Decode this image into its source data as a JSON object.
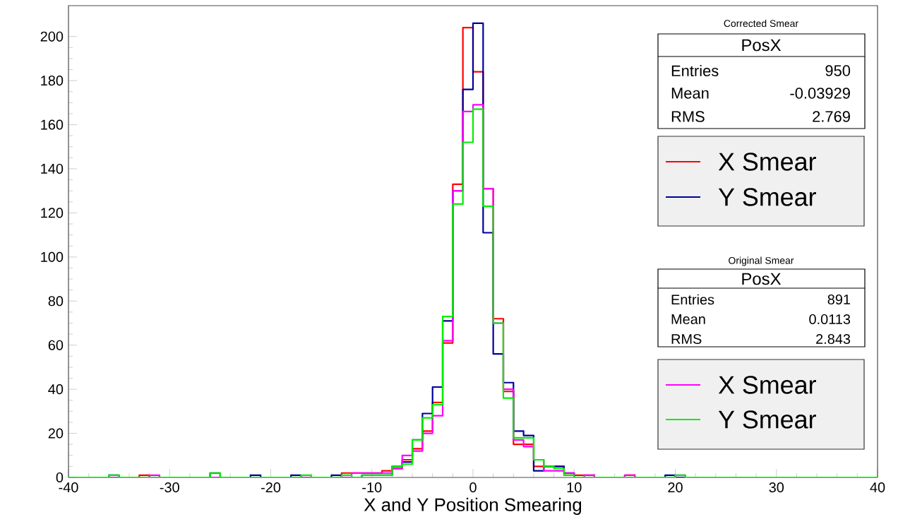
{
  "chart_data": {
    "type": "histogram",
    "xlabel": "X and Y Position Smearing",
    "bins": [
      -40,
      -39,
      -38,
      -37,
      -36,
      -35,
      -34,
      -33,
      -32,
      -31,
      -30,
      -29,
      -28,
      -27,
      -26,
      -25,
      -24,
      -23,
      -22,
      -21,
      -20,
      -19,
      -18,
      -17,
      -16,
      -15,
      -14,
      -13,
      -12,
      -11,
      -10,
      -9,
      -8,
      -7,
      -6,
      -5,
      -4,
      -3,
      -2,
      -1,
      0,
      1,
      2,
      3,
      4,
      5,
      6,
      7,
      8,
      9,
      10,
      11,
      12,
      13,
      14,
      15,
      16,
      17,
      18,
      19,
      20,
      21,
      22,
      23,
      24,
      25,
      26,
      27,
      28,
      29,
      30,
      31,
      32,
      33,
      34,
      35,
      36,
      37,
      38,
      39,
      40
    ],
    "series": [
      {
        "name": "X Smear",
        "color": "#ff0000",
        "values": [
          0,
          0,
          0,
          0,
          0,
          0,
          0,
          1,
          0,
          0,
          0,
          0,
          0,
          0,
          0,
          0,
          0,
          0,
          0,
          0,
          0,
          0,
          0,
          0,
          0,
          0,
          0,
          2,
          2,
          2,
          2,
          3,
          4,
          8,
          13,
          21,
          34,
          61,
          133,
          204,
          184,
          131,
          72,
          39,
          15,
          15,
          5,
          5,
          5,
          1,
          1,
          1,
          0,
          0,
          0,
          1,
          0,
          0,
          0,
          0,
          0,
          0,
          0,
          0,
          0,
          0,
          0,
          0,
          0,
          0,
          0,
          0,
          0,
          0,
          0,
          0,
          0,
          0,
          0,
          0
        ]
      },
      {
        "name": "Y Smear",
        "color": "#000099",
        "values": [
          0,
          0,
          0,
          0,
          1,
          0,
          0,
          0,
          0,
          0,
          0,
          0,
          0,
          0,
          2,
          0,
          0,
          0,
          1,
          0,
          0,
          0,
          1,
          0,
          0,
          0,
          1,
          0,
          0,
          1,
          1,
          1,
          5,
          7,
          17,
          29,
          41,
          71,
          130,
          176,
          206,
          111,
          56,
          43,
          21,
          19,
          3,
          5,
          5,
          2,
          0,
          0,
          0,
          0,
          0,
          0,
          0,
          0,
          0,
          1,
          0,
          0,
          0,
          0,
          0,
          0,
          0,
          0,
          0,
          0,
          0,
          0,
          0,
          0,
          0,
          0,
          0,
          0,
          0,
          0
        ]
      },
      {
        "name": "X Smear",
        "color": "#ff00ff",
        "values": [
          0,
          0,
          0,
          0,
          0,
          0,
          0,
          0,
          1,
          0,
          0,
          0,
          0,
          0,
          0,
          0,
          0,
          0,
          0,
          0,
          0,
          0,
          0,
          0,
          0,
          0,
          0,
          0,
          2,
          2,
          2,
          2,
          4,
          10,
          12,
          20,
          28,
          62,
          130,
          166,
          169,
          131,
          70,
          40,
          17,
          14,
          8,
          3,
          3,
          2,
          0,
          1,
          0,
          0,
          0,
          1,
          0,
          0,
          0,
          0,
          1,
          0,
          0,
          0,
          0,
          0,
          0,
          0,
          0,
          0,
          0,
          0,
          0,
          0,
          0,
          0,
          0,
          0,
          0,
          0
        ]
      },
      {
        "name": "Y Smear",
        "color": "#00ee00",
        "values": [
          0,
          0,
          0,
          0,
          1,
          0,
          0,
          0,
          0,
          0,
          0,
          0,
          0,
          0,
          2,
          0,
          0,
          0,
          0,
          0,
          0,
          0,
          0,
          1,
          0,
          0,
          0,
          1,
          0,
          1,
          1,
          1,
          5,
          6,
          17,
          27,
          33,
          73,
          124,
          152,
          167,
          123,
          70,
          36,
          18,
          18,
          8,
          5,
          4,
          1,
          0,
          0,
          0,
          0,
          0,
          0,
          0,
          0,
          0,
          0,
          1,
          0,
          0,
          0,
          0,
          0,
          0,
          0,
          0,
          0,
          0,
          0,
          0,
          0,
          0,
          0,
          0,
          0,
          0,
          0
        ]
      }
    ],
    "xlim": [
      -40,
      40
    ],
    "ylim": [
      0,
      214
    ],
    "xticks": [
      -40,
      -30,
      -20,
      -10,
      0,
      10,
      20,
      30,
      40
    ],
    "yticks": [
      0,
      20,
      40,
      60,
      80,
      100,
      120,
      140,
      160,
      180,
      200
    ],
    "legend": "right",
    "annotations": [
      "Corrected Smear",
      "PosX",
      "Entries",
      "950",
      "Mean",
      "-0.03929",
      "RMS",
      "2.769",
      "Original Smear",
      "PosX",
      "Entries",
      "891",
      "Mean",
      "0.0113",
      "RMS",
      "2.843"
    ]
  }
}
